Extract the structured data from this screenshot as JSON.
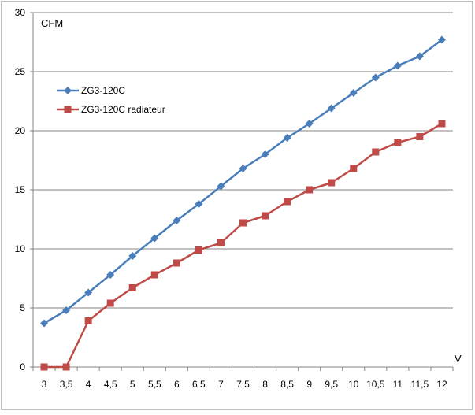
{
  "chart_data": {
    "type": "line",
    "title": "",
    "xlabel": "V",
    "ylabel": "CFM",
    "categories": [
      "3",
      "3,5",
      "4",
      "4,5",
      "5",
      "5,5",
      "6",
      "6,5",
      "7",
      "7,5",
      "8",
      "8,5",
      "9",
      "9,5",
      "10",
      "10,5",
      "11",
      "11,5",
      "12"
    ],
    "y_ticks": [
      "0",
      "5",
      "10",
      "15",
      "20",
      "25",
      "30"
    ],
    "ylim": [
      0,
      30
    ],
    "grid": "horizontal",
    "legend_position": "top-left",
    "series": [
      {
        "name": "ZG3-120C",
        "color": "#4a7ebb",
        "marker": "diamond",
        "values": [
          3.7,
          4.8,
          6.3,
          7.8,
          9.4,
          10.9,
          12.4,
          13.8,
          15.3,
          16.8,
          18.0,
          19.4,
          20.6,
          21.9,
          23.2,
          24.5,
          25.5,
          26.3,
          27.7
        ]
      },
      {
        "name": "ZG3-120C radiateur",
        "color": "#be4b48",
        "marker": "square",
        "values": [
          0,
          0,
          3.9,
          5.4,
          6.7,
          7.8,
          8.8,
          9.9,
          10.5,
          12.2,
          12.8,
          14.0,
          15.0,
          15.6,
          16.8,
          18.2,
          19.0,
          19.5,
          20.6
        ]
      }
    ]
  }
}
